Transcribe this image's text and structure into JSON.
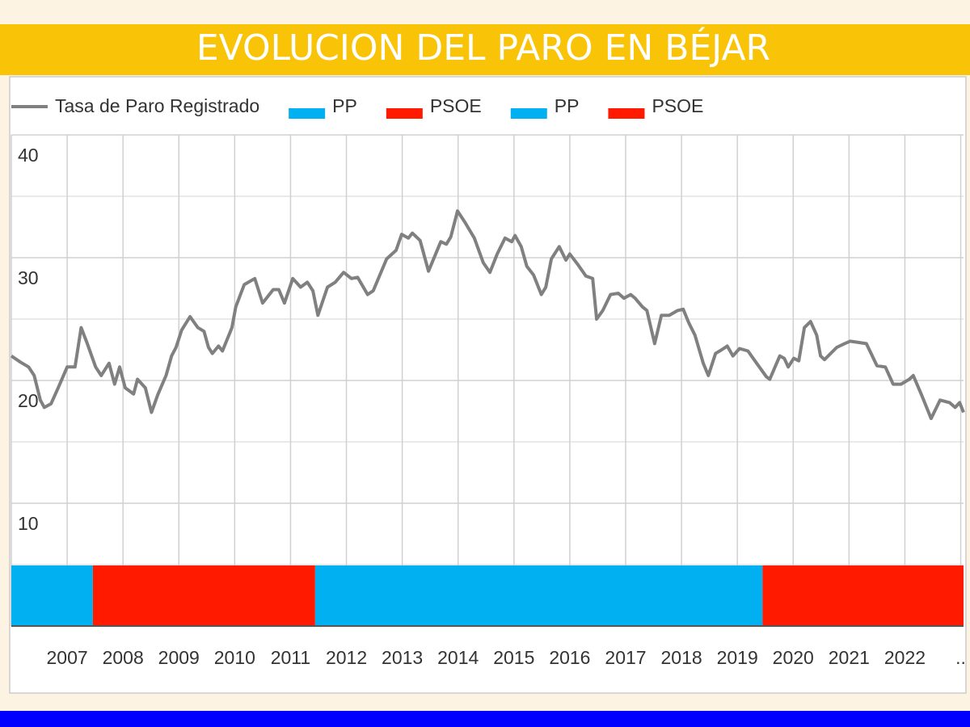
{
  "chart_data": {
    "type": "line",
    "title": "EVOLUCION DEL PARO EN BÉJAR",
    "xlim": [
      2006,
      2023.05
    ],
    "xticks": [
      2007,
      2008,
      2009,
      2010,
      2011,
      2012,
      2013,
      2014,
      2015,
      2016,
      2017,
      2018,
      2019,
      2020,
      2021,
      2022,
      {
        "value": 2023,
        "label": ".."
      }
    ],
    "ylim": [
      0,
      40
    ],
    "yticks": [
      10,
      20,
      30,
      40
    ],
    "minor_yticks": [
      5,
      15,
      25,
      35
    ],
    "grid": true,
    "series": [
      {
        "name": "Tasa de Paro Registrado",
        "color": "#808080",
        "x": [
          2006.0,
          2006.16,
          2006.31,
          2006.41,
          2006.52,
          2006.59,
          2006.71,
          2006.84,
          2007.0,
          2007.14,
          2007.25,
          2007.36,
          2007.51,
          2007.61,
          2007.75,
          2007.85,
          2007.94,
          2008.04,
          2008.19,
          2008.26,
          2008.4,
          2008.51,
          2008.62,
          2008.77,
          2008.87,
          2008.95,
          2009.05,
          2009.2,
          2009.34,
          2009.45,
          2009.53,
          2009.6,
          2009.71,
          2009.78,
          2009.95,
          2010.02,
          2010.17,
          2010.36,
          2010.5,
          2010.69,
          2010.79,
          2010.89,
          2011.04,
          2011.18,
          2011.3,
          2011.4,
          2011.49,
          2011.66,
          2011.8,
          2011.95,
          2012.09,
          2012.2,
          2012.38,
          2012.48,
          2012.72,
          2012.89,
          2012.99,
          2013.11,
          2013.18,
          2013.32,
          2013.47,
          2013.69,
          2013.79,
          2013.87,
          2013.99,
          2014.12,
          2014.29,
          2014.45,
          2014.57,
          2014.7,
          2014.84,
          2014.96,
          2015.02,
          2015.13,
          2015.23,
          2015.35,
          2015.49,
          2015.57,
          2015.67,
          2015.81,
          2015.93,
          2016.0,
          2016.15,
          2016.29,
          2016.41,
          2016.48,
          2016.59,
          2016.73,
          2016.87,
          2016.97,
          2017.09,
          2017.17,
          2017.3,
          2017.38,
          2017.52,
          2017.64,
          2017.78,
          2017.93,
          2018.03,
          2018.13,
          2018.24,
          2018.39,
          2018.48,
          2018.61,
          2018.72,
          2018.82,
          2018.92,
          2019.04,
          2019.19,
          2019.33,
          2019.52,
          2019.58,
          2019.76,
          2019.84,
          2019.91,
          2020.01,
          2020.1,
          2020.2,
          2020.31,
          2020.42,
          2020.49,
          2020.56,
          2020.78,
          2020.92,
          2021.02,
          2021.31,
          2021.5,
          2021.65,
          2021.79,
          2021.93,
          2022.08,
          2022.15,
          2022.3,
          2022.47,
          2022.63,
          2022.8,
          2022.9,
          2022.98,
          2023.05
        ],
        "values": [
          22.0,
          21.5,
          21.1,
          20.4,
          18.4,
          17.8,
          18.1,
          19.4,
          21.1,
          21.1,
          24.3,
          23.0,
          21.1,
          20.4,
          21.4,
          19.7,
          21.1,
          19.4,
          18.9,
          20.1,
          19.4,
          17.4,
          18.8,
          20.4,
          22.0,
          22.7,
          24.1,
          25.2,
          24.3,
          24.0,
          22.7,
          22.2,
          22.8,
          22.4,
          24.3,
          26.0,
          27.8,
          28.3,
          26.3,
          27.4,
          27.4,
          26.3,
          28.3,
          27.6,
          28.0,
          27.3,
          25.3,
          27.6,
          28.0,
          28.8,
          28.3,
          28.4,
          27.0,
          27.3,
          29.9,
          30.6,
          31.9,
          31.6,
          32.0,
          31.4,
          28.9,
          31.3,
          31.1,
          31.7,
          33.8,
          32.9,
          31.6,
          29.6,
          28.8,
          30.3,
          31.6,
          31.3,
          31.8,
          30.9,
          29.3,
          28.6,
          27.0,
          27.6,
          29.9,
          30.9,
          29.8,
          30.3,
          29.4,
          28.5,
          28.3,
          25.0,
          25.7,
          27.0,
          27.1,
          26.7,
          27.0,
          26.7,
          26.0,
          25.7,
          23.0,
          25.3,
          25.3,
          25.7,
          25.8,
          24.7,
          23.7,
          21.4,
          20.4,
          22.2,
          22.5,
          22.8,
          22.0,
          22.6,
          22.4,
          21.5,
          20.3,
          20.1,
          22.0,
          21.8,
          21.1,
          21.8,
          21.6,
          24.3,
          24.8,
          23.7,
          22.0,
          21.7,
          22.7,
          23.0,
          23.2,
          23.0,
          21.2,
          21.1,
          19.7,
          19.7,
          20.1,
          20.4,
          18.8,
          16.9,
          18.4,
          18.2,
          17.8,
          18.2,
          17.4
        ]
      }
    ],
    "bands": [
      {
        "name": "PP",
        "color": "#00b0f0",
        "start": 2006,
        "end": 2007.46
      },
      {
        "name": "PSOE",
        "color": "#ff1a00",
        "start": 2007.46,
        "end": 2011.44
      },
      {
        "name": "PP",
        "color": "#00b0f0",
        "start": 2011.44,
        "end": 2019.45
      },
      {
        "name": "PSOE",
        "color": "#ff1a00",
        "start": 2019.45,
        "end": 2023.05
      }
    ]
  }
}
